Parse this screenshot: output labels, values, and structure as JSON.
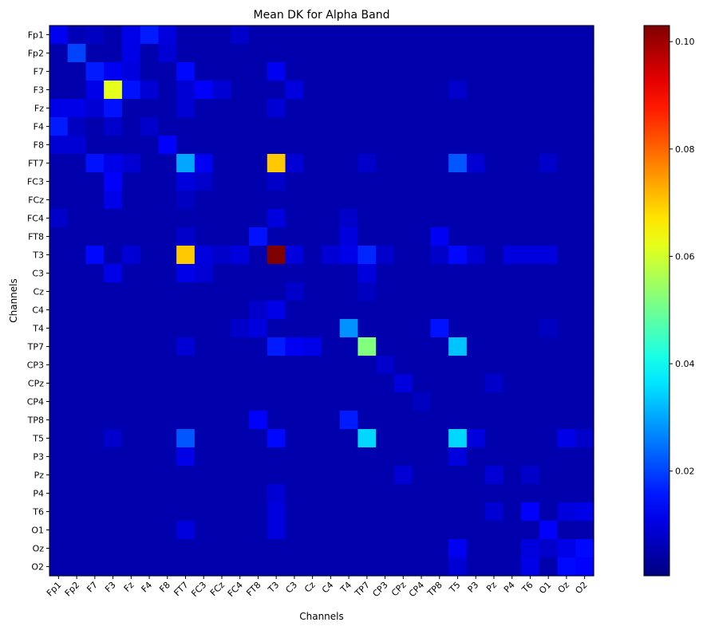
{
  "chart_data": {
    "type": "heatmap",
    "title": "Mean DK for Alpha Band",
    "xlabel": "Channels",
    "ylabel": "Channels",
    "colormap": "jet",
    "colorbar": {
      "vmin": 0.0005,
      "vmax": 0.103,
      "ticks": [
        0.02,
        0.04,
        0.06,
        0.08,
        0.1
      ],
      "tick_labels": [
        "0.02",
        "0.04",
        "0.06",
        "0.08",
        "0.10"
      ]
    },
    "channels": [
      "Fp1",
      "Fp2",
      "F7",
      "F3",
      "Fz",
      "F4",
      "F8",
      "FT7",
      "FC3",
      "FCz",
      "FC4",
      "FT8",
      "T3",
      "C3",
      "Cz",
      "C4",
      "T4",
      "TP7",
      "CP3",
      "CPz",
      "CP4",
      "TP8",
      "T5",
      "P3",
      "Pz",
      "P4",
      "T6",
      "O1",
      "Oz",
      "O2"
    ],
    "x_tick_labels": [
      "Fp1",
      "Fp2",
      "F7",
      "F3",
      "Fz",
      "F4",
      "F8",
      "FT7",
      "FC3",
      "FCz",
      "FC4",
      "FT8",
      "T3",
      "C3",
      "Cz",
      "C4",
      "T4",
      "TP7",
      "CP3",
      "CPz",
      "CP4",
      "TP8",
      "T5",
      "P3",
      "Pz",
      "P4",
      "T6",
      "O1",
      "Oz",
      "O2"
    ],
    "y_tick_labels": [
      "Fp1",
      "Fp2",
      "F7",
      "F3",
      "Fz",
      "F4",
      "F8",
      "FT7",
      "FC3",
      "FCz",
      "FC4",
      "FT8",
      "T3",
      "C3",
      "Cz",
      "C4",
      "T4",
      "TP7",
      "CP3",
      "CPz",
      "CP4",
      "TP8",
      "T5",
      "P3",
      "Pz",
      "P4",
      "T6",
      "O1",
      "Oz",
      "O2"
    ],
    "default_value": 0.005,
    "cells": [
      {
        "row": "Fp1",
        "col": "Fp1",
        "value": 0.012
      },
      {
        "row": "Fp1",
        "col": "Fp2",
        "value": 0.006
      },
      {
        "row": "Fp1",
        "col": "F7",
        "value": 0.007
      },
      {
        "row": "Fp1",
        "col": "Fz",
        "value": 0.011
      },
      {
        "row": "Fp1",
        "col": "F4",
        "value": 0.016
      },
      {
        "row": "Fp1",
        "col": "F8",
        "value": 0.01
      },
      {
        "row": "Fp1",
        "col": "FC4",
        "value": 0.008
      },
      {
        "row": "Fp2",
        "col": "Fp2",
        "value": 0.02
      },
      {
        "row": "Fp2",
        "col": "Fz",
        "value": 0.011
      },
      {
        "row": "Fp2",
        "col": "F8",
        "value": 0.009
      },
      {
        "row": "F7",
        "col": "F7",
        "value": 0.016
      },
      {
        "row": "F7",
        "col": "F3",
        "value": 0.012
      },
      {
        "row": "F7",
        "col": "Fz",
        "value": 0.01
      },
      {
        "row": "F7",
        "col": "FT7",
        "value": 0.014
      },
      {
        "row": "F7",
        "col": "T3",
        "value": 0.012
      },
      {
        "row": "F3",
        "col": "F3",
        "value": 0.062
      },
      {
        "row": "F3",
        "col": "F7",
        "value": 0.011
      },
      {
        "row": "F3",
        "col": "Fz",
        "value": 0.015
      },
      {
        "row": "F3",
        "col": "F4",
        "value": 0.009
      },
      {
        "row": "F3",
        "col": "FT7",
        "value": 0.009
      },
      {
        "row": "F3",
        "col": "FC3",
        "value": 0.013
      },
      {
        "row": "F3",
        "col": "FCz",
        "value": 0.009
      },
      {
        "row": "F3",
        "col": "C3",
        "value": 0.01
      },
      {
        "row": "F3",
        "col": "T5",
        "value": 0.008
      },
      {
        "row": "Fz",
        "col": "Fp1",
        "value": 0.011
      },
      {
        "row": "Fz",
        "col": "Fp2",
        "value": 0.011
      },
      {
        "row": "Fz",
        "col": "F7",
        "value": 0.009
      },
      {
        "row": "Fz",
        "col": "F3",
        "value": 0.015
      },
      {
        "row": "Fz",
        "col": "FT7",
        "value": 0.009
      },
      {
        "row": "Fz",
        "col": "T3",
        "value": 0.009
      },
      {
        "row": "F4",
        "col": "Fp1",
        "value": 0.016
      },
      {
        "row": "F4",
        "col": "Fp2",
        "value": 0.007
      },
      {
        "row": "F4",
        "col": "F3",
        "value": 0.008
      },
      {
        "row": "F4",
        "col": "F4",
        "value": 0.008
      },
      {
        "row": "F8",
        "col": "Fp1",
        "value": 0.009
      },
      {
        "row": "F8",
        "col": "Fp2",
        "value": 0.009
      },
      {
        "row": "F8",
        "col": "F8",
        "value": 0.013
      },
      {
        "row": "FT7",
        "col": "F7",
        "value": 0.015
      },
      {
        "row": "FT7",
        "col": "F3",
        "value": 0.011
      },
      {
        "row": "FT7",
        "col": "Fz",
        "value": 0.009
      },
      {
        "row": "FT7",
        "col": "FT7",
        "value": 0.03
      },
      {
        "row": "FT7",
        "col": "FC3",
        "value": 0.012
      },
      {
        "row": "FT7",
        "col": "T3",
        "value": 0.07
      },
      {
        "row": "FT7",
        "col": "C3",
        "value": 0.009
      },
      {
        "row": "FT7",
        "col": "TP7",
        "value": 0.008
      },
      {
        "row": "FT7",
        "col": "T5",
        "value": 0.022
      },
      {
        "row": "FT7",
        "col": "P3",
        "value": 0.009
      },
      {
        "row": "FT7",
        "col": "O1",
        "value": 0.008
      },
      {
        "row": "FC3",
        "col": "F3",
        "value": 0.013
      },
      {
        "row": "FC3",
        "col": "FT7",
        "value": 0.01
      },
      {
        "row": "FC3",
        "col": "FC3",
        "value": 0.008
      },
      {
        "row": "FC3",
        "col": "T3",
        "value": 0.008
      },
      {
        "row": "FCz",
        "col": "F3",
        "value": 0.011
      },
      {
        "row": "FCz",
        "col": "FT7",
        "value": 0.007
      },
      {
        "row": "FC4",
        "col": "Fp1",
        "value": 0.008
      },
      {
        "row": "FC4",
        "col": "T3",
        "value": 0.01
      },
      {
        "row": "FC4",
        "col": "T4",
        "value": 0.008
      },
      {
        "row": "FT8",
        "col": "FT8",
        "value": 0.015
      },
      {
        "row": "FT8",
        "col": "FT7",
        "value": 0.008
      },
      {
        "row": "FT8",
        "col": "T4",
        "value": 0.01
      },
      {
        "row": "FT8",
        "col": "TP8",
        "value": 0.012
      },
      {
        "row": "T3",
        "col": "F7",
        "value": 0.014
      },
      {
        "row": "T3",
        "col": "Fz",
        "value": 0.009
      },
      {
        "row": "T3",
        "col": "FT7",
        "value": 0.07
      },
      {
        "row": "T3",
        "col": "FC3",
        "value": 0.01
      },
      {
        "row": "T3",
        "col": "FCz",
        "value": 0.008
      },
      {
        "row": "T3",
        "col": "FC4",
        "value": 0.01
      },
      {
        "row": "T3",
        "col": "T3",
        "value": 0.103
      },
      {
        "row": "T3",
        "col": "C3",
        "value": 0.01
      },
      {
        "row": "T3",
        "col": "C4",
        "value": 0.009
      },
      {
        "row": "T3",
        "col": "T4",
        "value": 0.011
      },
      {
        "row": "T3",
        "col": "TP7",
        "value": 0.017
      },
      {
        "row": "T3",
        "col": "CP3",
        "value": 0.008
      },
      {
        "row": "T3",
        "col": "TP8",
        "value": 0.008
      },
      {
        "row": "T3",
        "col": "T5",
        "value": 0.014
      },
      {
        "row": "T3",
        "col": "P3",
        "value": 0.009
      },
      {
        "row": "T3",
        "col": "P4",
        "value": 0.01
      },
      {
        "row": "T3",
        "col": "T6",
        "value": 0.01
      },
      {
        "row": "T3",
        "col": "O1",
        "value": 0.01
      },
      {
        "row": "C3",
        "col": "F3",
        "value": 0.011
      },
      {
        "row": "C3",
        "col": "FT7",
        "value": 0.011
      },
      {
        "row": "C3",
        "col": "FC3",
        "value": 0.009
      },
      {
        "row": "C3",
        "col": "TP7",
        "value": 0.01
      },
      {
        "row": "Cz",
        "col": "C3",
        "value": 0.008
      },
      {
        "row": "Cz",
        "col": "TP7",
        "value": 0.007
      },
      {
        "row": "C4",
        "col": "FT8",
        "value": 0.008
      },
      {
        "row": "C4",
        "col": "T3",
        "value": 0.011
      },
      {
        "row": "T4",
        "col": "FT8",
        "value": 0.01
      },
      {
        "row": "T4",
        "col": "T4",
        "value": 0.028
      },
      {
        "row": "T4",
        "col": "TP8",
        "value": 0.015
      },
      {
        "row": "T4",
        "col": "FC4",
        "value": 0.008
      },
      {
        "row": "T4",
        "col": "O1",
        "value": 0.007
      },
      {
        "row": "TP7",
        "col": "T3",
        "value": 0.016
      },
      {
        "row": "TP7",
        "col": "TP7",
        "value": 0.052
      },
      {
        "row": "TP7",
        "col": "C3",
        "value": 0.012
      },
      {
        "row": "TP7",
        "col": "Cz",
        "value": 0.011
      },
      {
        "row": "TP7",
        "col": "T5",
        "value": 0.033
      },
      {
        "row": "TP7",
        "col": "FT7",
        "value": 0.009
      },
      {
        "row": "CP3",
        "col": "CP3",
        "value": 0.008
      },
      {
        "row": "CPz",
        "col": "CPz",
        "value": 0.01
      },
      {
        "row": "CPz",
        "col": "Pz",
        "value": 0.008
      },
      {
        "row": "CP4",
        "col": "CP4",
        "value": 0.007
      },
      {
        "row": "TP8",
        "col": "FT8",
        "value": 0.013
      },
      {
        "row": "TP8",
        "col": "T4",
        "value": 0.016
      },
      {
        "row": "T5",
        "col": "FT7",
        "value": 0.022
      },
      {
        "row": "T5",
        "col": "T3",
        "value": 0.014
      },
      {
        "row": "T5",
        "col": "TP7",
        "value": 0.035
      },
      {
        "row": "T5",
        "col": "T5",
        "value": 0.035
      },
      {
        "row": "T5",
        "col": "F3",
        "value": 0.008
      },
      {
        "row": "T5",
        "col": "P3",
        "value": 0.01
      },
      {
        "row": "T5",
        "col": "Oz",
        "value": 0.011
      },
      {
        "row": "T5",
        "col": "O2",
        "value": 0.008
      },
      {
        "row": "P3",
        "col": "FT7",
        "value": 0.011
      },
      {
        "row": "P3",
        "col": "T5",
        "value": 0.01
      },
      {
        "row": "Pz",
        "col": "CPz",
        "value": 0.009
      },
      {
        "row": "Pz",
        "col": "Pz",
        "value": 0.009
      },
      {
        "row": "Pz",
        "col": "T6",
        "value": 0.008
      },
      {
        "row": "P4",
        "col": "T3",
        "value": 0.009
      },
      {
        "row": "T6",
        "col": "T3",
        "value": 0.01
      },
      {
        "row": "T6",
        "col": "T6",
        "value": 0.013
      },
      {
        "row": "T6",
        "col": "Pz",
        "value": 0.009
      },
      {
        "row": "T6",
        "col": "Oz",
        "value": 0.01
      },
      {
        "row": "T6",
        "col": "O2",
        "value": 0.011
      },
      {
        "row": "O1",
        "col": "FT7",
        "value": 0.01
      },
      {
        "row": "O1",
        "col": "T3",
        "value": 0.01
      },
      {
        "row": "O1",
        "col": "O1",
        "value": 0.013
      },
      {
        "row": "Oz",
        "col": "T5",
        "value": 0.012
      },
      {
        "row": "Oz",
        "col": "T6",
        "value": 0.01
      },
      {
        "row": "Oz",
        "col": "O1",
        "value": 0.008
      },
      {
        "row": "Oz",
        "col": "Oz",
        "value": 0.011
      },
      {
        "row": "Oz",
        "col": "O2",
        "value": 0.014
      },
      {
        "row": "O2",
        "col": "T6",
        "value": 0.011
      },
      {
        "row": "O2",
        "col": "Oz",
        "value": 0.014
      },
      {
        "row": "O2",
        "col": "O2",
        "value": 0.013
      },
      {
        "row": "O2",
        "col": "T5",
        "value": 0.009
      }
    ]
  }
}
